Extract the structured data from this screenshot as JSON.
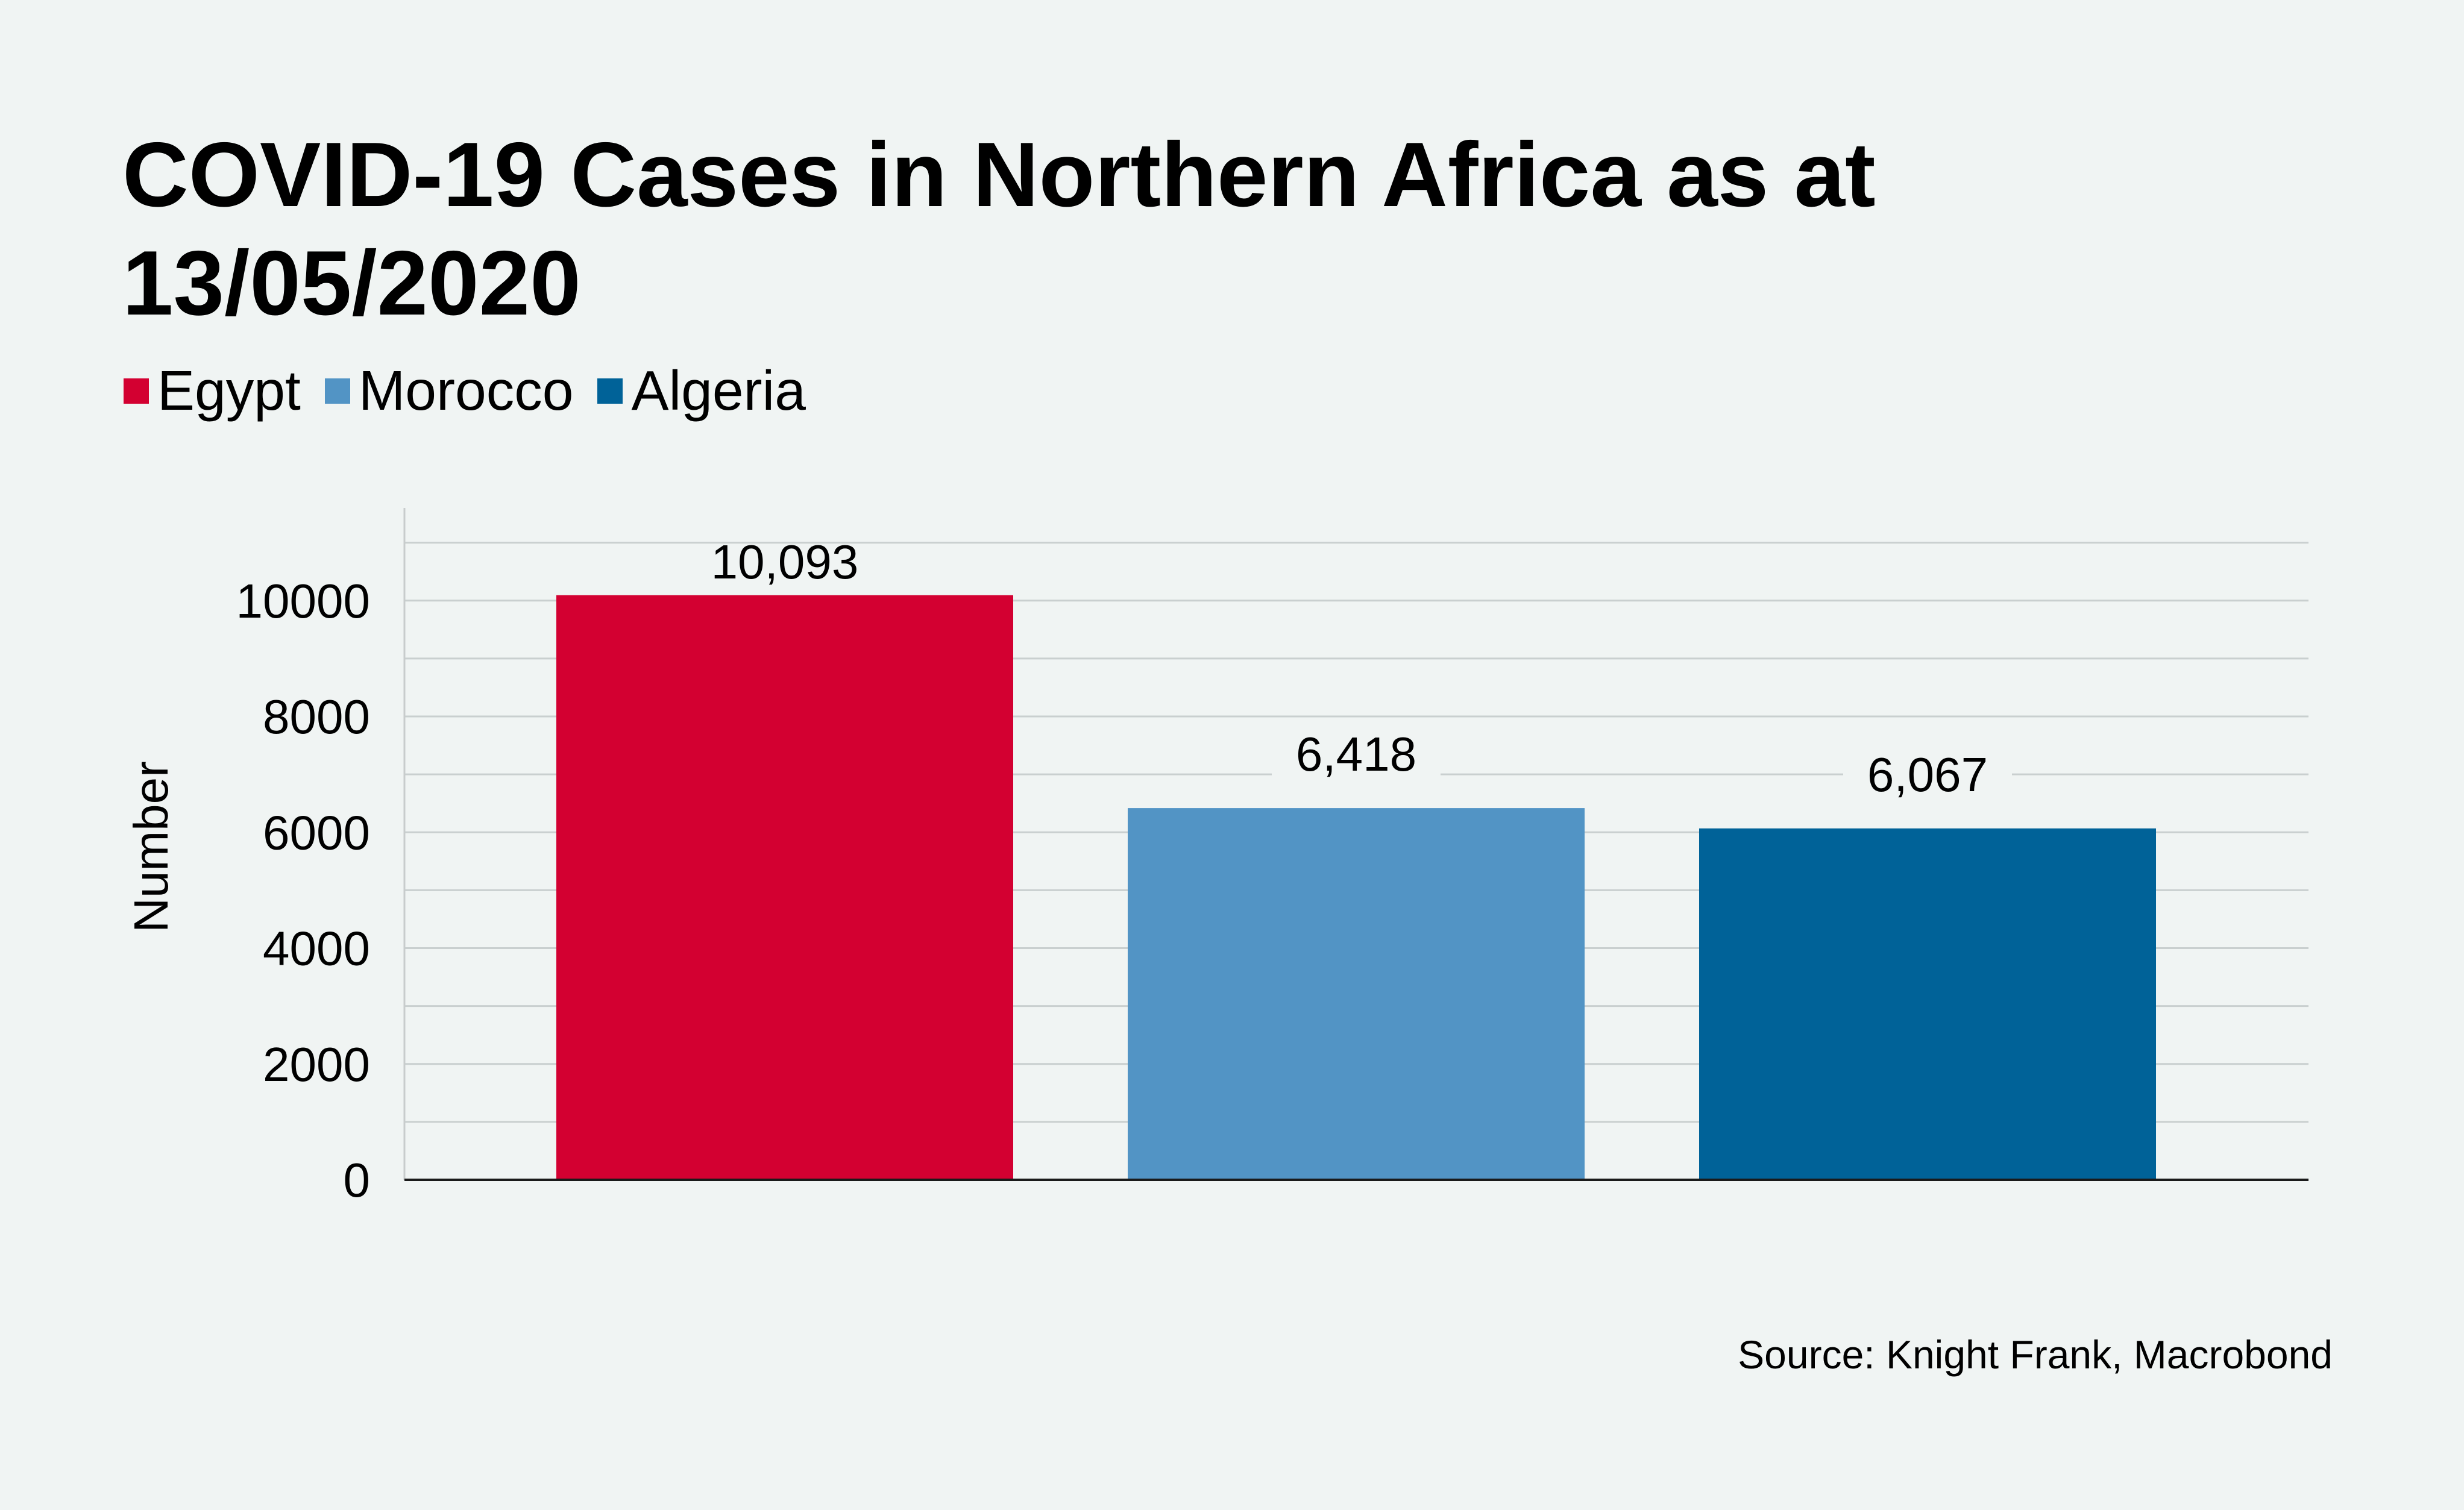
{
  "header": {
    "title": "COVID-19 Cases in Northern Africa as at 13/05/2020"
  },
  "legend": [
    {
      "label": "Egypt",
      "color": "#d30031"
    },
    {
      "label": "Morocco",
      "color": "#5294c5"
    },
    {
      "label": "Algeria",
      "color": "#006298"
    }
  ],
  "footer": {
    "source": "Source: Knight Frank, Macrobond"
  },
  "chart_data": {
    "type": "bar",
    "title": "COVID-19 Cases in Northern Africa as at 13/05/2020",
    "categories": [
      "Egypt",
      "Morocco",
      "Algeria"
    ],
    "values": [
      10093,
      6418,
      6067
    ],
    "data_labels": [
      "10,093",
      "6,418",
      "6,067"
    ],
    "colors": [
      "#d30031",
      "#5294c5",
      "#006298"
    ],
    "xlabel": "",
    "ylabel": "Number",
    "ylim": [
      0,
      11600
    ],
    "yticks": [
      0,
      2000,
      4000,
      6000,
      8000,
      10000
    ],
    "ytick_labels": [
      "0",
      "2000",
      "4000",
      "6000",
      "8000",
      "10000"
    ],
    "minor_gridlines": [
      1000,
      3000,
      5000,
      7000,
      9000,
      11000
    ],
    "grid": true,
    "legend_position": "top-left",
    "source": "Source: Knight Frank, Macrobond"
  }
}
